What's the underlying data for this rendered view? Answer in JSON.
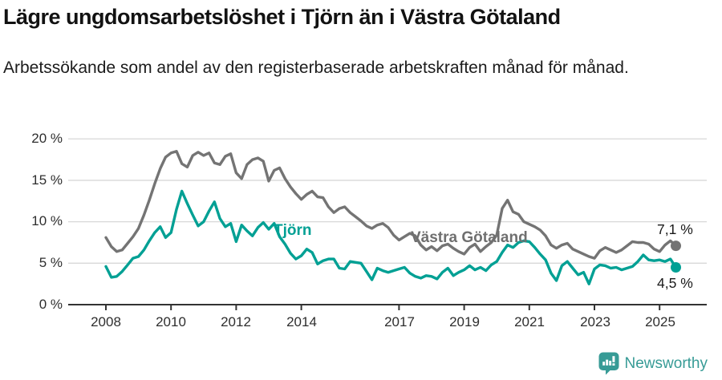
{
  "header": {
    "title": "Lägre ungdomsarbetslöshet i Tjörn än i Västra Götaland",
    "subtitle": "Arbetssökande som andel av den registerbaserade arbetskraften månad för månad."
  },
  "chart": {
    "y_ticks": [
      "20 %",
      "15 %",
      "10 %",
      "5 %",
      "0 %"
    ],
    "x_ticks": [
      "2008",
      "2010",
      "2012",
      "2014",
      "2017",
      "2019",
      "2021",
      "2023",
      "2025"
    ],
    "series_labels": {
      "tjorn": "Tjörn",
      "vastra_gotaland": "Västra Götaland"
    },
    "end_values": {
      "vastra_gotaland": "7,1 %",
      "tjorn": "4,5 %"
    }
  },
  "chart_data": {
    "type": "line",
    "title": "Lägre ungdomsarbetslöshet i Tjörn än i Västra Götaland",
    "subtitle": "Arbetssökande som andel av den registerbaserade arbetskraften månad för månad.",
    "unit": "%",
    "x_start_year": 2008.0,
    "x_step_years": 0.1666667,
    "ylim": [
      0,
      20
    ],
    "y_tick_values": [
      20,
      15,
      10,
      5,
      0
    ],
    "x_tick_years": [
      2008,
      2010,
      2012,
      2014,
      2017,
      2019,
      2021,
      2023,
      2025
    ],
    "grid": true,
    "legend_position": "inline-labels",
    "series": [
      {
        "name": "Västra Götaland",
        "color": "#747474",
        "end_label": "7,1 %",
        "latest_value": 7.1,
        "values": [
          8.1,
          7.0,
          6.4,
          6.6,
          7.4,
          8.2,
          9.2,
          10.8,
          12.6,
          14.6,
          16.4,
          17.8,
          18.3,
          18.5,
          17.0,
          16.6,
          18.0,
          18.4,
          18.0,
          18.3,
          17.1,
          16.9,
          17.9,
          18.2,
          15.9,
          15.2,
          16.9,
          17.5,
          17.7,
          17.3,
          14.9,
          16.2,
          16.5,
          15.2,
          14.2,
          13.4,
          12.7,
          13.3,
          13.7,
          13.0,
          12.9,
          11.8,
          11.1,
          11.6,
          11.8,
          11.1,
          10.6,
          10.1,
          9.5,
          9.2,
          9.6,
          9.8,
          9.3,
          8.4,
          7.8,
          8.2,
          8.6,
          8.3,
          7.2,
          6.6,
          7.0,
          6.5,
          7.1,
          7.3,
          6.8,
          6.4,
          6.1,
          6.9,
          7.3,
          6.4,
          7.0,
          7.5,
          8.4,
          11.6,
          12.6,
          11.2,
          10.9,
          10.0,
          9.7,
          9.4,
          9.0,
          8.3,
          7.2,
          6.8,
          7.2,
          7.4,
          6.7,
          6.4,
          6.1,
          5.8,
          5.6,
          6.5,
          6.9,
          6.6,
          6.3,
          6.6,
          7.1,
          7.6,
          7.5,
          7.5,
          7.3,
          6.7,
          6.4,
          7.2,
          7.7,
          7.1
        ]
      },
      {
        "name": "Tjörn",
        "color": "#00a094",
        "end_label": "4,5 %",
        "latest_value": 4.5,
        "values": [
          4.6,
          3.3,
          3.4,
          4.0,
          4.8,
          5.6,
          5.8,
          6.6,
          7.7,
          8.7,
          9.4,
          8.1,
          8.7,
          11.5,
          13.7,
          12.2,
          10.8,
          9.5,
          10.0,
          11.3,
          12.4,
          10.4,
          9.4,
          9.8,
          7.6,
          9.6,
          8.9,
          8.3,
          9.3,
          9.9,
          9.1,
          9.8,
          8.2,
          7.3,
          6.2,
          5.5,
          5.9,
          6.7,
          6.3,
          4.9,
          5.3,
          5.5,
          5.5,
          4.4,
          4.3,
          5.2,
          5.1,
          5.0,
          4.0,
          3.0,
          4.4,
          4.1,
          3.9,
          4.1,
          4.3,
          4.5,
          3.8,
          3.4,
          3.2,
          3.5,
          3.4,
          3.1,
          3.9,
          4.4,
          3.5,
          3.9,
          4.2,
          4.7,
          4.2,
          4.5,
          4.1,
          4.8,
          5.2,
          6.3,
          7.2,
          6.9,
          7.5,
          7.7,
          7.6,
          6.9,
          6.1,
          5.4,
          3.8,
          2.9,
          4.7,
          5.2,
          4.4,
          3.6,
          3.9,
          2.5,
          4.3,
          4.8,
          4.7,
          4.4,
          4.5,
          4.2,
          4.4,
          4.6,
          5.2,
          6.0,
          5.4,
          5.3,
          5.4,
          5.2,
          5.5,
          4.5
        ]
      }
    ]
  },
  "footer": {
    "brand": "Newsworthy"
  },
  "colors": {
    "accent_teal": "#00a094",
    "series_gray": "#747474",
    "grid": "#d8d8d8",
    "axis": "#333333",
    "text": "#1a1a1a",
    "logo_teal": "#379b96"
  }
}
